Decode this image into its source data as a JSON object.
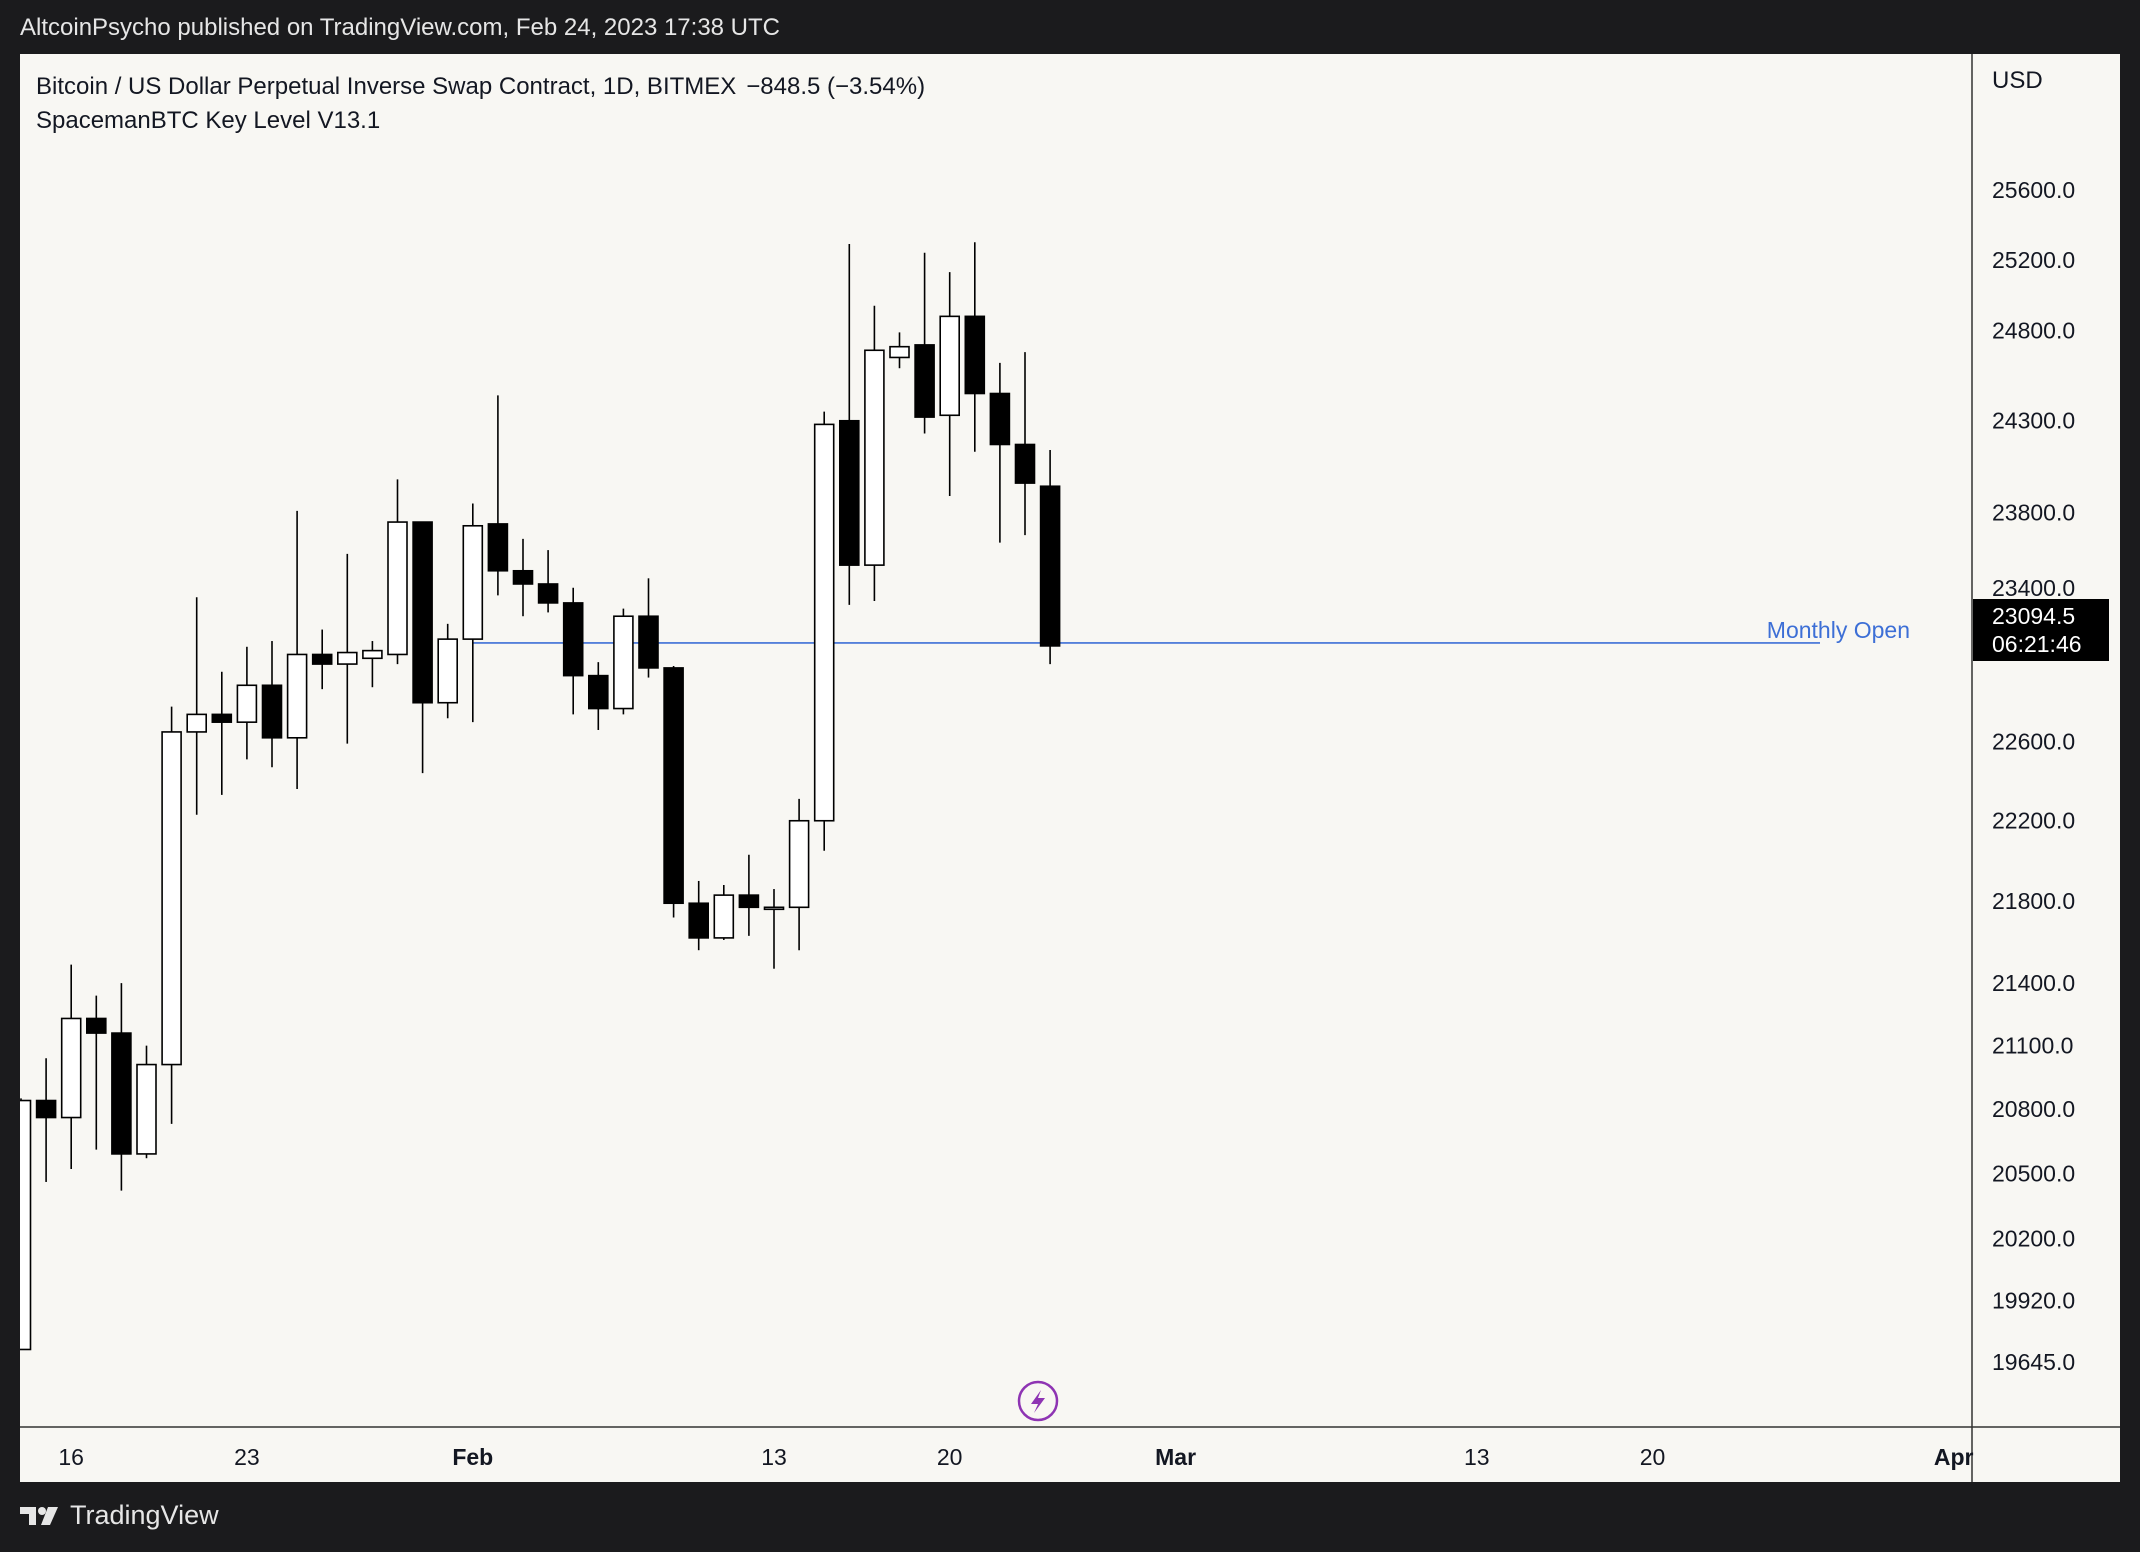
{
  "header": {
    "published_line": "AltcoinPsycho published on TradingView.com, Feb 24, 2023 17:38 UTC"
  },
  "legend": {
    "symbol_line": "Bitcoin / US Dollar Perpetual Inverse Swap Contract, 1D, BITMEX",
    "change": "−848.5 (−3.54%)",
    "indicator": "SpacemanBTC Key Level V13.1"
  },
  "price_axis": {
    "currency": "USD",
    "ticks": [
      "25600.0",
      "25200.0",
      "24800.0",
      "24300.0",
      "23800.0",
      "23400.0",
      "22600.0",
      "22200.0",
      "21800.0",
      "21400.0",
      "21100.0",
      "20800.0",
      "20500.0",
      "20200.0",
      "19920.0",
      "19645.0"
    ],
    "current_price": "23094.5",
    "countdown": "06:21:46"
  },
  "time_axis": {
    "labels": [
      "16",
      "23",
      "Feb",
      "13",
      "20",
      "Mar",
      "13",
      "20",
      "Apr"
    ]
  },
  "annotations": {
    "monthly_open_label": "Monthly Open"
  },
  "footer": {
    "brand": "TradingView"
  },
  "colors": {
    "background": "#f8f7f3",
    "candle_body_up": "#ffffff",
    "candle_body_down": "#000000",
    "candle_border": "#000000",
    "monthly_open_line": "#3d6fd6",
    "page_frame": "#1b1b1d",
    "current_price_tag": "#000000",
    "lightning_icon": "#8e34b3"
  },
  "chart_data": {
    "type": "candlestick",
    "interval": "1D",
    "x_start": "2023-01-14",
    "x_axis_range": [
      "2023-01-14",
      "2023-04-01"
    ],
    "y_axis_scale": "log",
    "y_range": [
      19450,
      25950
    ],
    "monthly_open": 23110,
    "last_price": 23094.5,
    "candles": [
      {
        "date": "2023-01-14",
        "o": 19700,
        "h": 20850,
        "l": 19700,
        "c": 20840
      },
      {
        "date": "2023-01-15",
        "o": 20840,
        "h": 21040,
        "l": 20460,
        "c": 20760
      },
      {
        "date": "2023-01-16",
        "o": 20760,
        "h": 21490,
        "l": 20520,
        "c": 21230
      },
      {
        "date": "2023-01-17",
        "o": 21230,
        "h": 21340,
        "l": 20610,
        "c": 21160
      },
      {
        "date": "2023-01-18",
        "o": 21160,
        "h": 21400,
        "l": 20420,
        "c": 20590
      },
      {
        "date": "2023-01-19",
        "o": 20590,
        "h": 21100,
        "l": 20570,
        "c": 21010
      },
      {
        "date": "2023-01-20",
        "o": 21010,
        "h": 22780,
        "l": 20730,
        "c": 22650
      },
      {
        "date": "2023-01-21",
        "o": 22650,
        "h": 23350,
        "l": 22230,
        "c": 22740
      },
      {
        "date": "2023-01-22",
        "o": 22740,
        "h": 22960,
        "l": 22330,
        "c": 22700
      },
      {
        "date": "2023-01-23",
        "o": 22700,
        "h": 23090,
        "l": 22510,
        "c": 22890
      },
      {
        "date": "2023-01-24",
        "o": 22890,
        "h": 23120,
        "l": 22470,
        "c": 22620
      },
      {
        "date": "2023-01-25",
        "o": 22620,
        "h": 23810,
        "l": 22360,
        "c": 23050
      },
      {
        "date": "2023-01-26",
        "o": 23050,
        "h": 23180,
        "l": 22870,
        "c": 23000
      },
      {
        "date": "2023-01-27",
        "o": 23000,
        "h": 23580,
        "l": 22590,
        "c": 23060
      },
      {
        "date": "2023-01-28",
        "o": 23030,
        "h": 23120,
        "l": 22880,
        "c": 23070
      },
      {
        "date": "2023-01-29",
        "o": 23050,
        "h": 23980,
        "l": 23000,
        "c": 23750
      },
      {
        "date": "2023-01-30",
        "o": 23750,
        "h": 23750,
        "l": 22440,
        "c": 22800
      },
      {
        "date": "2023-01-31",
        "o": 22800,
        "h": 23210,
        "l": 22720,
        "c": 23130
      },
      {
        "date": "2023-02-01",
        "o": 23130,
        "h": 23850,
        "l": 22700,
        "c": 23730
      },
      {
        "date": "2023-02-02",
        "o": 23740,
        "h": 24440,
        "l": 23360,
        "c": 23490
      },
      {
        "date": "2023-02-03",
        "o": 23490,
        "h": 23660,
        "l": 23250,
        "c": 23420
      },
      {
        "date": "2023-02-04",
        "o": 23420,
        "h": 23600,
        "l": 23270,
        "c": 23320
      },
      {
        "date": "2023-02-05",
        "o": 23320,
        "h": 23400,
        "l": 22740,
        "c": 22940
      },
      {
        "date": "2023-02-06",
        "o": 22940,
        "h": 23010,
        "l": 22660,
        "c": 22770
      },
      {
        "date": "2023-02-07",
        "o": 22770,
        "h": 23290,
        "l": 22740,
        "c": 23250
      },
      {
        "date": "2023-02-08",
        "o": 23250,
        "h": 23450,
        "l": 22930,
        "c": 22980
      },
      {
        "date": "2023-02-09",
        "o": 22980,
        "h": 22990,
        "l": 21720,
        "c": 21790
      },
      {
        "date": "2023-02-10",
        "o": 21790,
        "h": 21900,
        "l": 21560,
        "c": 21620
      },
      {
        "date": "2023-02-11",
        "o": 21620,
        "h": 21880,
        "l": 21610,
        "c": 21830
      },
      {
        "date": "2023-02-12",
        "o": 21830,
        "h": 22030,
        "l": 21630,
        "c": 21770
      },
      {
        "date": "2023-02-13",
        "o": 21770,
        "h": 21860,
        "l": 21470,
        "c": 21770
      },
      {
        "date": "2023-02-14",
        "o": 21770,
        "h": 22310,
        "l": 21560,
        "c": 22200
      },
      {
        "date": "2023-02-15",
        "o": 22200,
        "h": 24350,
        "l": 22050,
        "c": 24280
      },
      {
        "date": "2023-02-16",
        "o": 24300,
        "h": 25290,
        "l": 23310,
        "c": 23520
      },
      {
        "date": "2023-02-17",
        "o": 23520,
        "h": 24940,
        "l": 23330,
        "c": 24690
      },
      {
        "date": "2023-02-18",
        "o": 24650,
        "h": 24790,
        "l": 24590,
        "c": 24710
      },
      {
        "date": "2023-02-19",
        "o": 24720,
        "h": 25240,
        "l": 24230,
        "c": 24320
      },
      {
        "date": "2023-02-20",
        "o": 24330,
        "h": 25130,
        "l": 23890,
        "c": 24880
      },
      {
        "date": "2023-02-21",
        "o": 24880,
        "h": 25300,
        "l": 24130,
        "c": 24450
      },
      {
        "date": "2023-02-22",
        "o": 24450,
        "h": 24620,
        "l": 23640,
        "c": 24170
      },
      {
        "date": "2023-02-23",
        "o": 24170,
        "h": 24680,
        "l": 23680,
        "c": 23960
      },
      {
        "date": "2023-02-24",
        "o": 23943,
        "h": 24140,
        "l": 23000,
        "c": 23094.5
      }
    ]
  }
}
